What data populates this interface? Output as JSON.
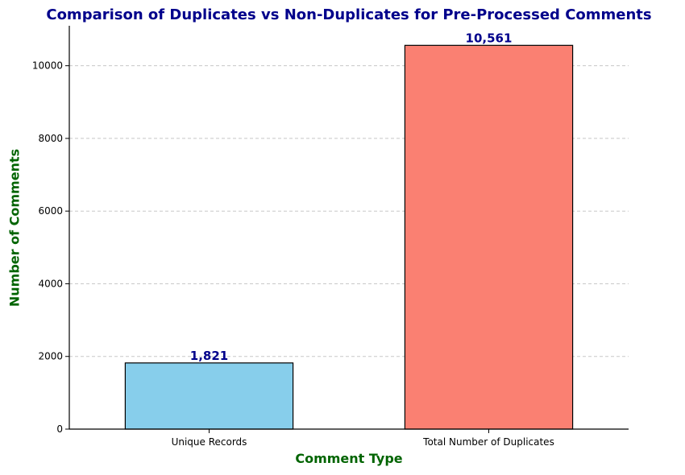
{
  "chart_data": {
    "type": "bar",
    "title": "Comparison of Duplicates vs Non-Duplicates for Pre-Processed Comments",
    "xlabel": "Comment Type",
    "ylabel": "Number of Comments",
    "categories": [
      "Unique Records",
      "Total Number of Duplicates"
    ],
    "values": [
      1821,
      10561
    ],
    "value_labels": [
      "1,821",
      "10,561"
    ],
    "colors": [
      "#87ceeb",
      "#fa8072"
    ],
    "ylim": [
      0,
      11100
    ],
    "yticks": [
      0,
      2000,
      4000,
      6000,
      8000,
      10000
    ],
    "grid": "y-dashed",
    "legend": "none"
  }
}
